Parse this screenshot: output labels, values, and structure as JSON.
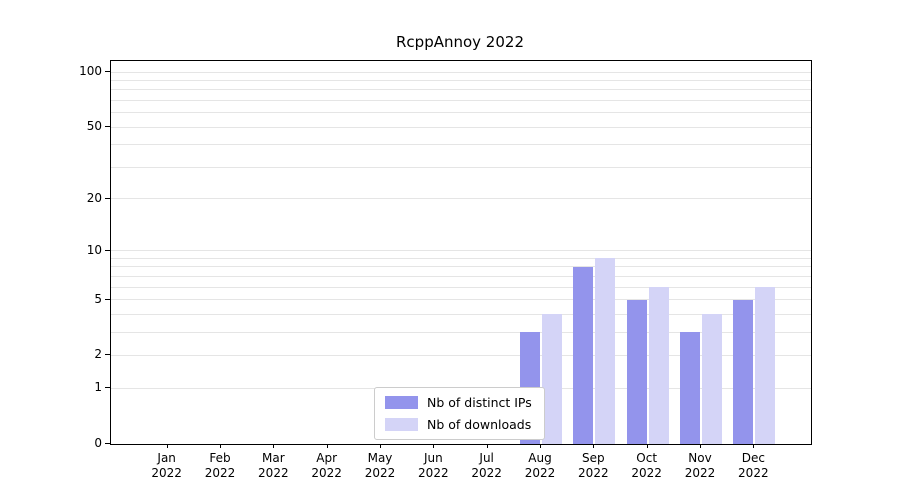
{
  "title": "RcppAnnoy 2022",
  "year_label": "2022",
  "colors": {
    "distinct_ips": "#9394ec",
    "downloads": "#d4d4f7",
    "grid": "#e5e5e5",
    "frame": "#000000",
    "background": "#ffffff"
  },
  "legend": {
    "items": [
      {
        "label": "Nb of distinct IPs",
        "color": "#9394ec"
      },
      {
        "label": "Nb of downloads",
        "color": "#d4d4f7"
      }
    ]
  },
  "chart_data": {
    "type": "bar",
    "title": "RcppAnnoy 2022",
    "categories": [
      "Jan",
      "Feb",
      "Mar",
      "Apr",
      "May",
      "Jun",
      "Jul",
      "Aug",
      "Sep",
      "Oct",
      "Nov",
      "Dec"
    ],
    "year": "2022",
    "series": [
      {
        "name": "Nb of distinct IPs",
        "color": "#9394ec",
        "values": [
          0,
          0,
          0,
          0,
          0,
          0,
          0,
          3,
          8,
          5,
          3,
          5
        ]
      },
      {
        "name": "Nb of downloads",
        "color": "#d4d4f7",
        "values": [
          0,
          0,
          0,
          0,
          0,
          0,
          0,
          4,
          9,
          6,
          4,
          6
        ]
      }
    ],
    "xlabel": "",
    "ylabel": "",
    "yscale": "log1p",
    "ylim": [
      0,
      115
    ],
    "yticks": [
      0,
      1,
      2,
      5,
      10,
      20,
      50,
      100
    ],
    "grid_values": [
      1,
      2,
      3,
      4,
      5,
      6,
      7,
      8,
      9,
      10,
      20,
      30,
      40,
      50,
      60,
      70,
      80,
      90,
      100
    ],
    "grid": "horizontal",
    "legend_position": "lower center"
  }
}
